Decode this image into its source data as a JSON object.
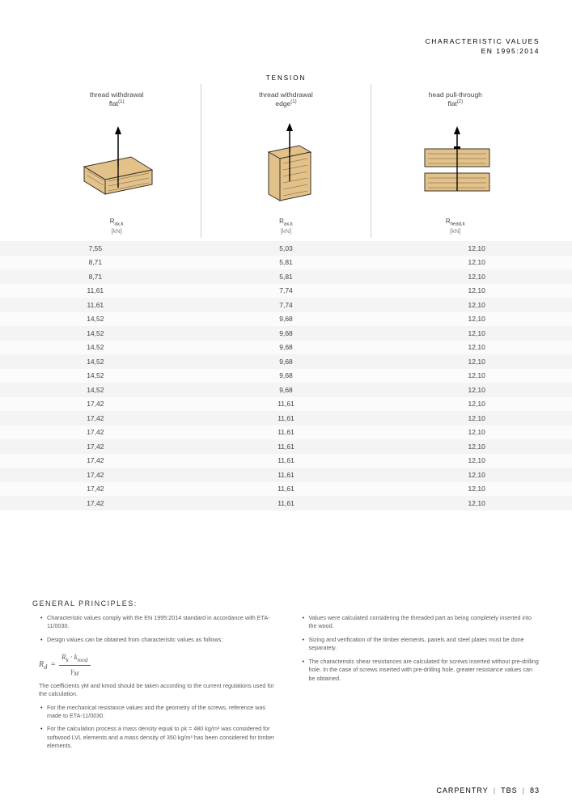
{
  "header": {
    "line1": "CHARACTERISTIC VALUES",
    "line2": "EN 1995:2014"
  },
  "section_title": "TENSION",
  "columns": [
    {
      "title_l1": "thread withdrawal",
      "title_l2": "flat",
      "title_sup": "(1)",
      "symbol": "R",
      "symbol_sub": "ax,k",
      "unit": "[kN]"
    },
    {
      "title_l1": "thread withdrawal",
      "title_l2": "edge",
      "title_sup": "(1)",
      "symbol": "R",
      "symbol_sub": "ax,k",
      "unit": "[kN]"
    },
    {
      "title_l1": "head pull-through",
      "title_l2": "flat",
      "title_sup": "(2)",
      "symbol": "R",
      "symbol_sub": "head,k",
      "unit": "[kN]"
    }
  ],
  "rows": [
    {
      "c": [
        "7,55",
        "5,03",
        "12,10"
      ],
      "cls": "alt"
    },
    {
      "c": [
        "8,71",
        "5,81",
        "12,10"
      ],
      "cls": "wh"
    },
    {
      "c": [
        "8,71",
        "5,81",
        "12,10"
      ],
      "cls": "alt"
    },
    {
      "c": [
        "11,61",
        "7,74",
        "12,10"
      ],
      "cls": "wh"
    },
    {
      "c": [
        "11,61",
        "7,74",
        "12,10"
      ],
      "cls": "alt"
    },
    {
      "c": [
        "14,52",
        "9,68",
        "12,10"
      ],
      "cls": "wh"
    },
    {
      "c": [
        "14,52",
        "9,68",
        "12,10"
      ],
      "cls": "alt"
    },
    {
      "c": [
        "14,52",
        "9,68",
        "12,10"
      ],
      "cls": "wh"
    },
    {
      "c": [
        "14,52",
        "9,68",
        "12,10"
      ],
      "cls": "alt"
    },
    {
      "c": [
        "14,52",
        "9,68",
        "12,10"
      ],
      "cls": "wh"
    },
    {
      "c": [
        "14,52",
        "9,68",
        "12,10"
      ],
      "cls": "alt"
    },
    {
      "c": [
        "17,42",
        "11,61",
        "12,10"
      ],
      "cls": "wh"
    },
    {
      "c": [
        "17,42",
        "11,61",
        "12,10"
      ],
      "cls": "alt"
    },
    {
      "c": [
        "17,42",
        "11,61",
        "12,10"
      ],
      "cls": "wh"
    },
    {
      "c": [
        "17,42",
        "11,61",
        "12,10"
      ],
      "cls": "alt"
    },
    {
      "c": [
        "17,42",
        "11,61",
        "12,10"
      ],
      "cls": "wh"
    },
    {
      "c": [
        "17,42",
        "11,61",
        "12,10"
      ],
      "cls": "alt"
    },
    {
      "c": [
        "17,42",
        "11,61",
        "12,10"
      ],
      "cls": "wh"
    },
    {
      "c": [
        "17,42",
        "11,61",
        "12,10"
      ],
      "cls": "alt"
    }
  ],
  "principles": {
    "title": "GENERAL PRINCIPLES:",
    "left": {
      "li1": "Characteristic values comply with the EN 1995:2014 standard in accordance with ETA-11/0030.",
      "li2": "Design values can be obtained from characteristic values as follows:",
      "formula_Rd": "R",
      "formula_d": "d",
      "formula_eq": "=",
      "formula_top_Rk": "R",
      "formula_top_k": "k",
      "formula_top_dot": "·",
      "formula_top_kmod": "k",
      "formula_top_mod": "mod",
      "formula_bot_g": "γ",
      "formula_bot_M": "M",
      "sub": "The coefficients γM and kmod should be taken according to the current regulations used for the calculation.",
      "li3": "For the mechanical resistance values and the geometry of the screws, reference was made to ETA-11/0030.",
      "li4": "For the calculation process a mass density equal to ρk = 480 kg/m³ was considered for softwood LVL elements and a mass density of 350 kg/m³ has been considered for timber elements."
    },
    "right": {
      "li1": "Values were calculated considering the threaded part as being completely inserted into the wood.",
      "li2": "Sizing and verification of the timber elements, panels and steel plates must be done separately.",
      "li3": "The characteristic shear resistances are calculated for screws inserted without pre-drilling hole. In the case of screws inserted with pre-drilling hole, greater resistance values can be obtained."
    }
  },
  "footer": {
    "a": "CARPENTRY",
    "b": "TBS",
    "c": "83"
  },
  "colors": {
    "wood_fill": "#e3c28a",
    "wood_stroke": "#3a3128",
    "arrow": "#000000"
  }
}
